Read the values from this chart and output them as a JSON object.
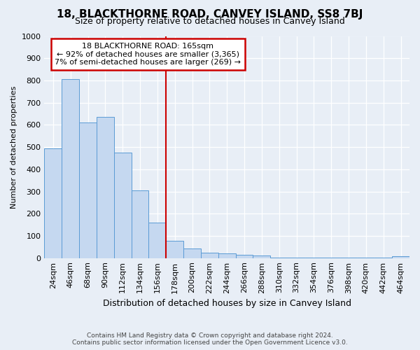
{
  "title": "18, BLACKTHORNE ROAD, CANVEY ISLAND, SS8 7BJ",
  "subtitle": "Size of property relative to detached houses in Canvey Island",
  "xlabel": "Distribution of detached houses by size in Canvey Island",
  "ylabel": "Number of detached properties",
  "footer1": "Contains HM Land Registry data © Crown copyright and database right 2024.",
  "footer2": "Contains public sector information licensed under the Open Government Licence v3.0.",
  "categories": [
    "24sqm",
    "46sqm",
    "68sqm",
    "90sqm",
    "112sqm",
    "134sqm",
    "156sqm",
    "178sqm",
    "200sqm",
    "222sqm",
    "244sqm",
    "266sqm",
    "288sqm",
    "310sqm",
    "332sqm",
    "354sqm",
    "376sqm",
    "398sqm",
    "420sqm",
    "442sqm",
    "464sqm"
  ],
  "values": [
    495,
    805,
    610,
    635,
    475,
    305,
    160,
    78,
    43,
    25,
    20,
    15,
    12,
    3,
    2,
    2,
    2,
    2,
    2,
    2,
    8
  ],
  "bar_color": "#c5d8f0",
  "bar_edge_color": "#5b9bd5",
  "highlight_bar_index": 6,
  "annotation_text_line1": "18 BLACKTHORNE ROAD: 165sqm",
  "annotation_text_line2": "← 92% of detached houses are smaller (3,365)",
  "annotation_text_line3": "7% of semi-detached houses are larger (269) →",
  "annotation_box_color": "#cc0000",
  "bg_color": "#e8eef6",
  "grid_color": "#ffffff",
  "ylim": [
    0,
    1000
  ],
  "yticks": [
    0,
    100,
    200,
    300,
    400,
    500,
    600,
    700,
    800,
    900,
    1000
  ],
  "title_fontsize": 11,
  "subtitle_fontsize": 9,
  "xlabel_fontsize": 9,
  "ylabel_fontsize": 8,
  "tick_fontsize": 8,
  "xtick_fontsize": 7,
  "footer_fontsize": 6.5,
  "annot_fontsize": 8
}
